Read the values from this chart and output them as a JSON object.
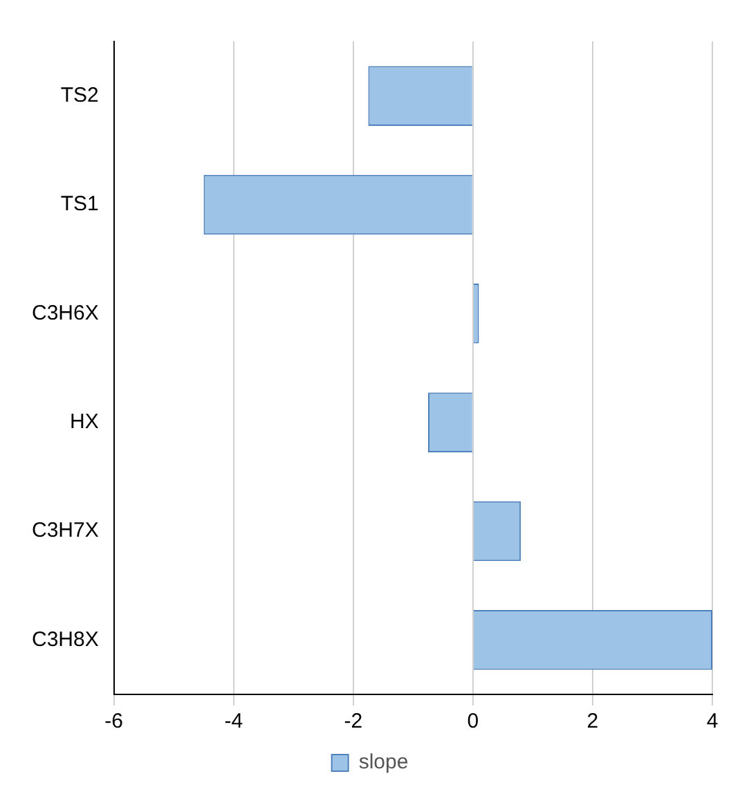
{
  "chart_data": {
    "type": "bar",
    "orientation": "horizontal",
    "categories": [
      "TS2",
      "TS1",
      "C3H6X",
      "HX",
      "C3H7X",
      "C3H8X"
    ],
    "series": [
      {
        "name": "slope",
        "color": "#9dc3e6",
        "values": [
          -1.75,
          -4.5,
          0.1,
          -0.75,
          0.8,
          4.0
        ]
      }
    ],
    "xlim": [
      -6,
      4
    ],
    "xticks": [
      -6,
      -4,
      -2,
      0,
      2,
      4
    ],
    "grid": "x",
    "legend": "bottom"
  }
}
